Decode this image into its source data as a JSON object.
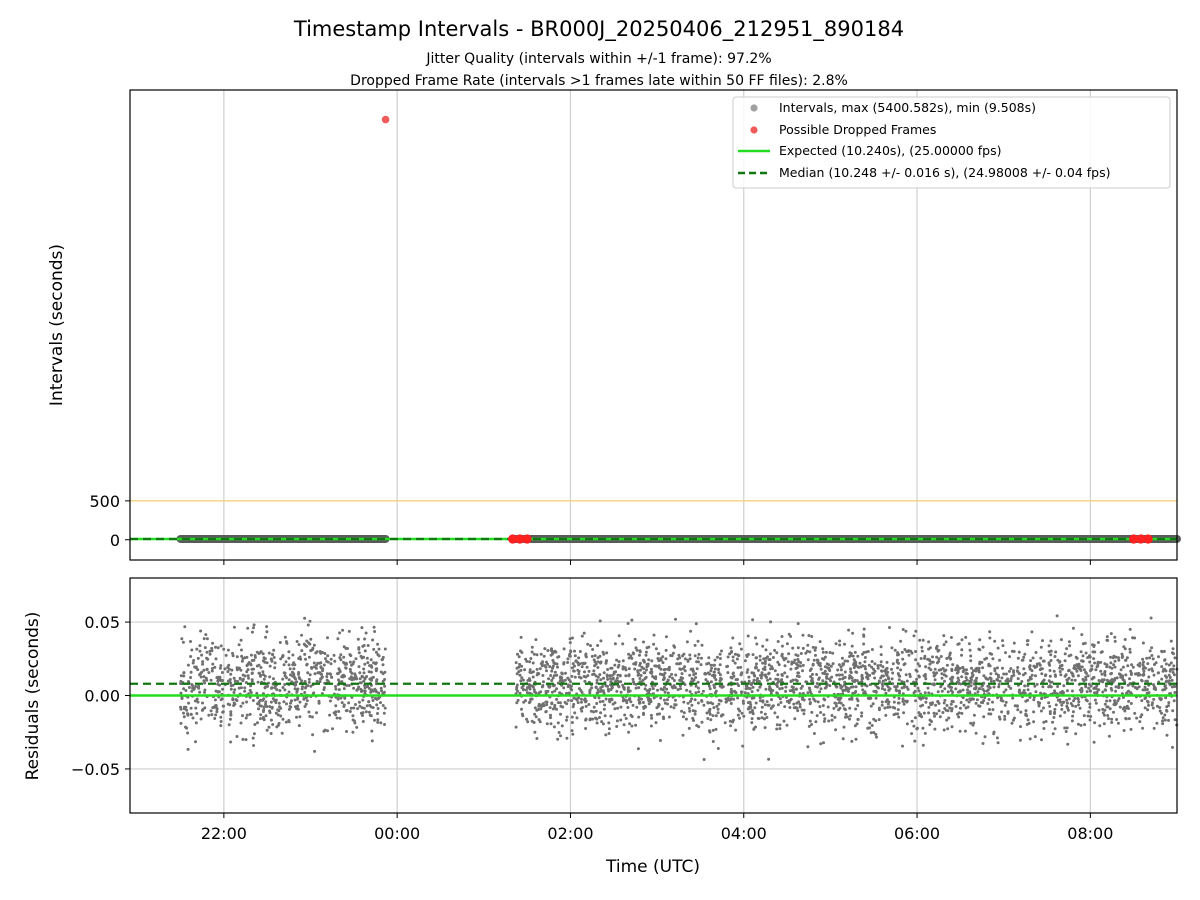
{
  "chart_data": [
    {
      "type": "scatter",
      "title": "Timestamp Intervals - BR000J_20250406_212951_890184",
      "subtitle_lines": [
        "Jitter Quality (intervals within +/-1 frame): 97.2%",
        "Dropped Frame Rate (intervals >1 frames late within 50 FF files): 2.8%"
      ],
      "ylabel": "Intervals (seconds)",
      "ylim": [
        -260,
        5780
      ],
      "yticks": [
        0,
        500
      ],
      "reference_line": {
        "y": 500,
        "color": "#f5d37a"
      },
      "grid": "x",
      "legend": {
        "placement": "top-right",
        "entries": [
          {
            "label": "Intervals, max (5400.582s), min (9.508s)",
            "marker": "point",
            "color": "#a0a0a0"
          },
          {
            "label": "Possible Dropped Frames",
            "marker": "point",
            "color": "#f05a5a"
          },
          {
            "label": "Expected (10.240s), (25.00000 fps)",
            "marker": "line",
            "color": "#22dd22"
          },
          {
            "label": "Median (10.248 +/- 0.016 s), (24.98008 +/- 0.04 fps)",
            "marker": "dashed",
            "color": "#117711"
          }
        ]
      },
      "series": [
        {
          "name": "Intervals, max (5400.582s), min (9.508s)",
          "color": "#a0a0a0",
          "x_range": [
            [
              "21:30",
              "23:52"
            ],
            [
              "01:22",
              "09:00"
            ]
          ],
          "y": 10.25
        },
        {
          "name": "Possible Dropped Frames",
          "color": "#f05a5a",
          "points": [
            {
              "x": "23:52",
              "y": 5400.582
            },
            {
              "x": "01:20",
              "y": 10.3
            },
            {
              "x": "01:25",
              "y": 10.3
            },
            {
              "x": "01:30",
              "y": 10.3
            },
            {
              "x": "08:30",
              "y": 10.3
            },
            {
              "x": "08:35",
              "y": 10.3
            },
            {
              "x": "08:40",
              "y": 10.3
            }
          ]
        },
        {
          "name": "Expected (10.240s), (25.00000 fps)",
          "color": "#22dd22",
          "y": 10.24
        },
        {
          "name": "Median (10.248 +/- 0.016 s), (24.98008 +/- 0.04 fps)",
          "color": "#117711",
          "y": 10.248
        }
      ]
    },
    {
      "type": "scatter",
      "xlabel": "Time (UTC)",
      "ylabel": "Residuals (seconds)",
      "xticks": [
        "22:00",
        "00:00",
        "02:00",
        "04:00",
        "06:00",
        "08:00"
      ],
      "xlim": [
        "20:55",
        "09:00"
      ],
      "ylim": [
        -0.08,
        0.08
      ],
      "yticks": [
        0.05,
        0.0,
        -0.05
      ],
      "ytick_labels": [
        "0.05",
        "0.00",
        "−0.05"
      ],
      "grid": "both",
      "series": [
        {
          "name": "Residuals",
          "color": "#707070",
          "x_range": [
            [
              "21:30",
              "23:52"
            ],
            [
              "01:22",
              "09:00"
            ]
          ],
          "center": 0.008,
          "spread": 0.016
        },
        {
          "name": "Expected",
          "color": "#22dd22",
          "y": 0.0
        },
        {
          "name": "Median",
          "color": "#117711",
          "y": 0.008
        }
      ]
    }
  ]
}
